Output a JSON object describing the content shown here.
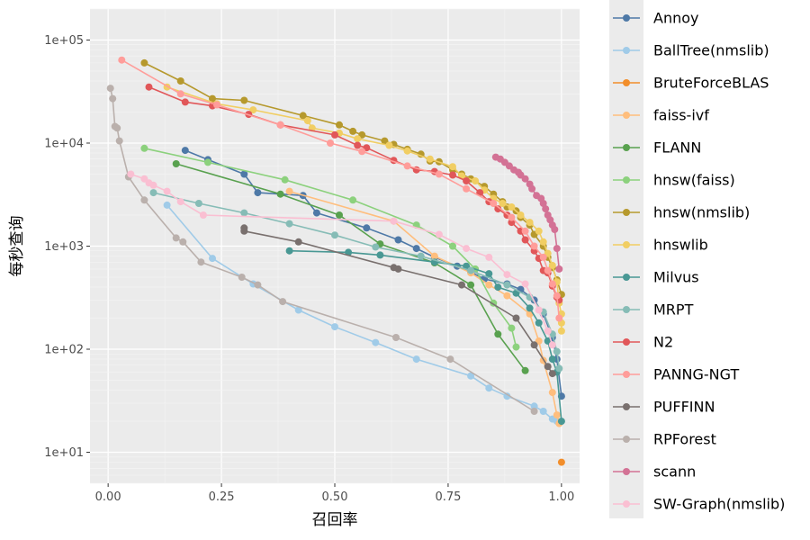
{
  "chart_data": {
    "type": "line",
    "xlabel": "召回率",
    "ylabel": "每秒查询",
    "xlim": [
      -0.04,
      1.04
    ],
    "ylim": [
      5,
      200000
    ],
    "y_scale": "log10",
    "x_ticks": [
      0,
      0.25,
      0.5,
      0.75,
      1.0
    ],
    "x_tick_labels": [
      "0.00",
      "0.25",
      "0.50",
      "0.75",
      "1.00"
    ],
    "y_ticks": [
      10,
      100,
      1000,
      10000,
      100000
    ],
    "y_tick_labels": [
      "1e+01",
      "1e+02",
      "1e+03",
      "1e+04",
      "1e+05"
    ],
    "grid": true,
    "legend_position": "right",
    "series": [
      {
        "name": "Annoy",
        "color": "#4e79a7",
        "points": [
          [
            0.17,
            8500
          ],
          [
            0.22,
            6900
          ],
          [
            0.3,
            5000
          ],
          [
            0.33,
            3300
          ],
          [
            0.43,
            3100
          ],
          [
            0.46,
            2100
          ],
          [
            0.57,
            1500
          ],
          [
            0.64,
            1150
          ],
          [
            0.68,
            950
          ],
          [
            0.72,
            780
          ],
          [
            0.77,
            640
          ],
          [
            0.8,
            560
          ],
          [
            0.83,
            480
          ],
          [
            0.88,
            430
          ],
          [
            0.91,
            380
          ],
          [
            0.94,
            300
          ],
          [
            0.96,
            220
          ],
          [
            0.98,
            130
          ],
          [
            0.99,
            80
          ],
          [
            1.0,
            35
          ]
        ]
      },
      {
        "name": "BallTree(nmslib)",
        "color": "#a0cbe8",
        "points": [
          [
            0.13,
            2500
          ],
          [
            0.23,
            760
          ],
          [
            0.32,
            430
          ],
          [
            0.42,
            240
          ],
          [
            0.5,
            165
          ],
          [
            0.59,
            116
          ],
          [
            0.68,
            80
          ],
          [
            0.8,
            55
          ],
          [
            0.84,
            42
          ],
          [
            0.88,
            35
          ],
          [
            0.94,
            28
          ],
          [
            0.96,
            25
          ],
          [
            0.98,
            21
          ],
          [
            0.99,
            20
          ]
        ]
      },
      {
        "name": "BruteForceBLAS",
        "color": "#f28e2b",
        "points": [
          [
            1.0,
            8
          ]
        ]
      },
      {
        "name": "faiss-ivf",
        "color": "#ffbe7d",
        "points": [
          [
            0.4,
            3400
          ],
          [
            0.63,
            1750
          ],
          [
            0.72,
            800
          ],
          [
            0.8,
            550
          ],
          [
            0.84,
            420
          ],
          [
            0.88,
            330
          ],
          [
            0.93,
            220
          ],
          [
            0.95,
            120
          ],
          [
            0.96,
            78
          ],
          [
            0.98,
            38
          ],
          [
            0.99,
            23
          ],
          [
            0.995,
            19
          ]
        ]
      },
      {
        "name": "FLANN",
        "color": "#59a14f",
        "points": [
          [
            0.15,
            6300
          ],
          [
            0.38,
            3200
          ],
          [
            0.51,
            2000
          ],
          [
            0.6,
            1050
          ],
          [
            0.72,
            690
          ],
          [
            0.8,
            420
          ],
          [
            0.86,
            140
          ],
          [
            0.92,
            62
          ]
        ]
      },
      {
        "name": "hnsw(faiss)",
        "color": "#8cd17d",
        "points": [
          [
            0.08,
            8900
          ],
          [
            0.22,
            6500
          ],
          [
            0.39,
            4400
          ],
          [
            0.54,
            2800
          ],
          [
            0.68,
            1600
          ],
          [
            0.76,
            1000
          ],
          [
            0.81,
            600
          ],
          [
            0.85,
            280
          ],
          [
            0.89,
            160
          ],
          [
            0.9,
            105
          ]
        ]
      },
      {
        "name": "hnsw(nmslib)",
        "color": "#b6992d",
        "points": [
          [
            0.08,
            60000
          ],
          [
            0.16,
            40000
          ],
          [
            0.23,
            27000
          ],
          [
            0.3,
            26000
          ],
          [
            0.43,
            18500
          ],
          [
            0.51,
            15000
          ],
          [
            0.54,
            13000
          ],
          [
            0.56,
            12000
          ],
          [
            0.61,
            10500
          ],
          [
            0.63,
            9700
          ],
          [
            0.66,
            8700
          ],
          [
            0.69,
            7800
          ],
          [
            0.71,
            6700
          ],
          [
            0.73,
            6600
          ],
          [
            0.76,
            5500
          ],
          [
            0.78,
            5000
          ],
          [
            0.8,
            4500
          ],
          [
            0.83,
            3800
          ],
          [
            0.85,
            3200
          ],
          [
            0.87,
            2700
          ],
          [
            0.88,
            2400
          ],
          [
            0.9,
            2200
          ],
          [
            0.91,
            1900
          ],
          [
            0.93,
            1600
          ],
          [
            0.94,
            1300
          ],
          [
            0.96,
            1000
          ],
          [
            0.97,
            780
          ],
          [
            0.98,
            620
          ],
          [
            0.99,
            470
          ],
          [
            1.0,
            340
          ]
        ]
      },
      {
        "name": "hnswlib",
        "color": "#f1ce63",
        "points": [
          [
            0.13,
            35000
          ],
          [
            0.24,
            24000
          ],
          [
            0.32,
            21000
          ],
          [
            0.44,
            16500
          ],
          [
            0.45,
            14000
          ],
          [
            0.51,
            12500
          ],
          [
            0.55,
            11000
          ],
          [
            0.62,
            9500
          ],
          [
            0.66,
            8400
          ],
          [
            0.71,
            7000
          ],
          [
            0.76,
            5900
          ],
          [
            0.78,
            4800
          ],
          [
            0.81,
            4300
          ],
          [
            0.83,
            3500
          ],
          [
            0.85,
            2900
          ],
          [
            0.87,
            2600
          ],
          [
            0.89,
            2400
          ],
          [
            0.91,
            2000
          ],
          [
            0.93,
            1700
          ],
          [
            0.95,
            1400
          ],
          [
            0.96,
            1100
          ],
          [
            0.97,
            850
          ],
          [
            0.98,
            650
          ],
          [
            0.99,
            450
          ],
          [
            0.995,
            280
          ],
          [
            1.0,
            220
          ],
          [
            1.0,
            180
          ],
          [
            1.0,
            150
          ]
        ]
      },
      {
        "name": "Milvus",
        "color": "#499894",
        "points": [
          [
            0.4,
            900
          ],
          [
            0.53,
            870
          ],
          [
            0.6,
            820
          ],
          [
            0.72,
            700
          ],
          [
            0.79,
            640
          ],
          [
            0.84,
            540
          ],
          [
            0.86,
            400
          ],
          [
            0.9,
            350
          ],
          [
            0.93,
            250
          ],
          [
            0.95,
            180
          ],
          [
            0.97,
            120
          ],
          [
            0.98,
            80
          ],
          [
            0.99,
            60
          ],
          [
            1.0,
            20
          ]
        ]
      },
      {
        "name": "MRPT",
        "color": "#86bcb6",
        "points": [
          [
            0.1,
            3300
          ],
          [
            0.2,
            2600
          ],
          [
            0.3,
            2100
          ],
          [
            0.4,
            1650
          ],
          [
            0.5,
            1280
          ],
          [
            0.59,
            980
          ],
          [
            0.69,
            800
          ],
          [
            0.8,
            580
          ],
          [
            0.88,
            420
          ],
          [
            0.93,
            320
          ],
          [
            0.96,
            230
          ],
          [
            0.98,
            140
          ],
          [
            0.99,
            95
          ],
          [
            0.995,
            65
          ]
        ]
      },
      {
        "name": "N2",
        "color": "#e15759",
        "points": [
          [
            0.09,
            35000
          ],
          [
            0.17,
            25000
          ],
          [
            0.23,
            23000
          ],
          [
            0.31,
            19000
          ],
          [
            0.38,
            15000
          ],
          [
            0.5,
            12000
          ],
          [
            0.55,
            9500
          ],
          [
            0.57,
            9000
          ],
          [
            0.63,
            6800
          ],
          [
            0.68,
            5500
          ],
          [
            0.72,
            5300
          ],
          [
            0.76,
            4900
          ],
          [
            0.79,
            4300
          ],
          [
            0.82,
            3300
          ],
          [
            0.84,
            2700
          ],
          [
            0.86,
            2300
          ],
          [
            0.88,
            2000
          ],
          [
            0.89,
            1700
          ],
          [
            0.91,
            1400
          ],
          [
            0.92,
            1150
          ],
          [
            0.94,
            900
          ],
          [
            0.95,
            760
          ],
          [
            0.96,
            580
          ],
          [
            0.97,
            550
          ],
          [
            0.98,
            410
          ],
          [
            0.99,
            320
          ],
          [
            0.995,
            300
          ]
        ]
      },
      {
        "name": "PANNG-NGT",
        "color": "#ff9d9a",
        "points": [
          [
            0.03,
            64000
          ],
          [
            0.16,
            30000
          ],
          [
            0.24,
            23500
          ],
          [
            0.38,
            15000
          ],
          [
            0.49,
            10000
          ],
          [
            0.56,
            8300
          ],
          [
            0.66,
            6000
          ],
          [
            0.73,
            5000
          ],
          [
            0.79,
            3600
          ],
          [
            0.85,
            2600
          ],
          [
            0.89,
            1900
          ],
          [
            0.92,
            1400
          ],
          [
            0.94,
            1000
          ],
          [
            0.96,
            780
          ],
          [
            0.97,
            580
          ],
          [
            0.98,
            430
          ],
          [
            0.99,
            330
          ],
          [
            0.995,
            200
          ]
        ]
      },
      {
        "name": "PUFFINN",
        "color": "#79706e",
        "points": [
          [
            0.3,
            1500
          ],
          [
            0.3,
            1400
          ],
          [
            0.42,
            1100
          ],
          [
            0.63,
            620
          ],
          [
            0.64,
            600
          ],
          [
            0.78,
            420
          ],
          [
            0.9,
            200
          ],
          [
            0.94,
            110
          ],
          [
            0.97,
            68
          ],
          [
            0.98,
            58
          ]
        ]
      },
      {
        "name": "RPForest",
        "color": "#bab0ac",
        "points": [
          [
            0.005,
            34000
          ],
          [
            0.01,
            27000
          ],
          [
            0.015,
            14500
          ],
          [
            0.02,
            14000
          ],
          [
            0.025,
            10500
          ],
          [
            0.045,
            4700
          ],
          [
            0.08,
            2800
          ],
          [
            0.15,
            1200
          ],
          [
            0.165,
            1100
          ],
          [
            0.205,
            700
          ],
          [
            0.295,
            500
          ],
          [
            0.33,
            420
          ],
          [
            0.385,
            290
          ],
          [
            0.635,
            130
          ],
          [
            0.755,
            80
          ],
          [
            0.94,
            25
          ]
        ]
      },
      {
        "name": "scann",
        "color": "#d37295",
        "points": [
          [
            0.855,
            7300
          ],
          [
            0.865,
            7000
          ],
          [
            0.875,
            6500
          ],
          [
            0.885,
            6000
          ],
          [
            0.895,
            5500
          ],
          [
            0.905,
            5200
          ],
          [
            0.91,
            4900
          ],
          [
            0.92,
            4500
          ],
          [
            0.93,
            4000
          ],
          [
            0.935,
            3600
          ],
          [
            0.945,
            3100
          ],
          [
            0.955,
            2900
          ],
          [
            0.96,
            2600
          ],
          [
            0.965,
            2300
          ],
          [
            0.97,
            2000
          ],
          [
            0.975,
            1800
          ],
          [
            0.98,
            1600
          ],
          [
            0.985,
            1450
          ],
          [
            0.99,
            950
          ],
          [
            0.995,
            600
          ]
        ]
      },
      {
        "name": "SW-Graph(nmslib)",
        "color": "#fabfd2",
        "points": [
          [
            0.05,
            5000
          ],
          [
            0.08,
            4500
          ],
          [
            0.09,
            4100
          ],
          [
            0.1,
            3900
          ],
          [
            0.13,
            3400
          ],
          [
            0.16,
            2700
          ],
          [
            0.21,
            2000
          ],
          [
            0.63,
            1750
          ],
          [
            0.73,
            1300
          ],
          [
            0.79,
            950
          ],
          [
            0.84,
            780
          ],
          [
            0.88,
            530
          ],
          [
            0.92,
            430
          ],
          [
            0.95,
            240
          ],
          [
            0.97,
            150
          ],
          [
            0.98,
            110
          ]
        ]
      }
    ]
  }
}
